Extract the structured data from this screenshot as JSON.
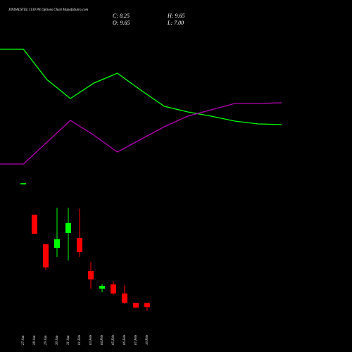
{
  "chart_data": [
    {
      "type": "line",
      "series": [
        {
          "color": "#00ff00",
          "values": [
            72,
            72,
            54.8,
            44,
            52.8,
            58.4,
            48.8,
            39.6,
            36.4,
            34,
            31.2,
            29.6,
            29.2
          ]
        },
        {
          "color": "#b000b0",
          "values": [
            6.8,
            6.8,
            19.2,
            31.6,
            23.2,
            13.6,
            20.8,
            28,
            34,
            37.6,
            41.2,
            41.2,
            41.6
          ]
        }
      ],
      "ylim": [
        0,
        100
      ]
    },
    {
      "type": "candlestick",
      "title": "JINDALSTEL 1130 PE Options Chart MunafaSutra.com",
      "info": [
        "C: 8.25",
        "H: 9.65",
        "O: 9.65",
        "L: 7.00"
      ],
      "categories": [
        "27 Jan",
        "28 Jan",
        "29 Jan",
        "30 Jan",
        "31 Jan",
        "01 Feb",
        "03 Feb",
        "04 Feb",
        "05 Feb",
        "06 Feb",
        "07 Feb",
        "10 Feb"
      ],
      "open": [
        49.2,
        39.1,
        29.2,
        28.0,
        33.0,
        31.3,
        20.3,
        14.4,
        15.8,
        12.8,
        9.7,
        9.65
      ],
      "high": [
        49.6,
        39.1,
        29.2,
        41.4,
        41.4,
        41.0,
        23.3,
        16.0,
        16.8,
        15.6,
        9.7,
        9.65
      ],
      "low": [
        49.2,
        32.7,
        20.7,
        25.0,
        23.8,
        25.0,
        14.4,
        13.2,
        12.3,
        9.2,
        7.9,
        7.0
      ],
      "close": [
        49.6,
        32.7,
        21.5,
        30.9,
        36.3,
        26.6,
        17.5,
        15.3,
        12.8,
        9.7,
        8.1,
        8.25
      ],
      "up_color": "#00ff00",
      "down_color": "#ff0000",
      "ylim": [
        5,
        52
      ]
    }
  ]
}
